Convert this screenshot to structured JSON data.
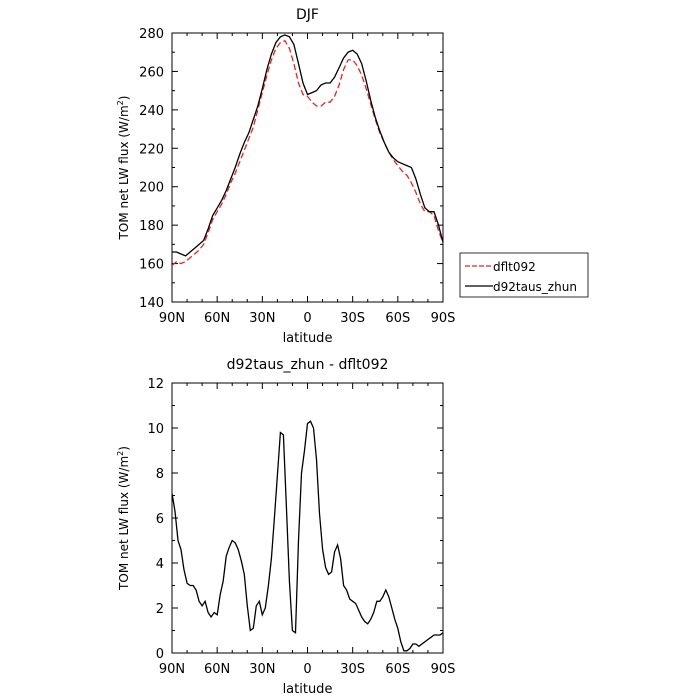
{
  "chart_data": [
    {
      "type": "line",
      "title": "DJF",
      "xlabel": "latitude",
      "ylabel": "TOM net LW flux (W/m²)",
      "ylabel_parts": {
        "main": "TOM net LW flux (W/m",
        "sup": "2",
        "end": ")"
      },
      "xlim": [
        -90,
        90
      ],
      "ylim": [
        140,
        280
      ],
      "x_ticks": [
        {
          "value": -90,
          "label": "90N"
        },
        {
          "value": -60,
          "label": "60N"
        },
        {
          "value": -30,
          "label": "30N"
        },
        {
          "value": 0,
          "label": "0"
        },
        {
          "value": 30,
          "label": "30S"
        },
        {
          "value": 60,
          "label": "60S"
        },
        {
          "value": 90,
          "label": "90S"
        }
      ],
      "y_ticks": [
        140,
        160,
        180,
        200,
        220,
        240,
        260,
        280
      ],
      "legend_position": "right",
      "series": [
        {
          "name": "dflt092",
          "color": "#e8231f",
          "dash": "dashed",
          "x": [
            -90,
            -87,
            -84,
            -81,
            -78,
            -75,
            -72,
            -69,
            -66,
            -63,
            -60,
            -57,
            -54,
            -51,
            -48,
            -45,
            -42,
            -39,
            -36,
            -33,
            -30,
            -27,
            -24,
            -21,
            -18,
            -15,
            -12,
            -9,
            -6,
            -3,
            0,
            3,
            6,
            9,
            12,
            15,
            18,
            21,
            24,
            27,
            30,
            33,
            36,
            39,
            42,
            45,
            48,
            51,
            54,
            57,
            60,
            63,
            66,
            69,
            72,
            75,
            78,
            81,
            84,
            87,
            90
          ],
          "y": [
            159,
            161,
            160,
            161,
            163,
            165,
            167,
            170,
            176,
            183,
            187,
            191,
            196,
            202,
            207,
            213,
            219,
            225,
            231,
            240,
            249,
            258,
            266,
            272,
            275,
            276,
            272,
            264,
            254,
            248,
            247,
            244,
            242,
            242,
            244,
            244,
            247,
            253,
            261,
            266,
            266,
            263,
            258,
            251,
            243,
            235,
            228,
            223,
            218,
            214,
            211,
            208,
            206,
            202,
            197,
            191,
            187,
            187,
            185,
            177,
            171
          ]
        },
        {
          "name": "d92taus_zhun",
          "color": "#000000",
          "dash": "solid",
          "x": [
            -90,
            -87,
            -84,
            -81,
            -78,
            -75,
            -72,
            -69,
            -66,
            -63,
            -60,
            -57,
            -54,
            -51,
            -48,
            -45,
            -42,
            -39,
            -36,
            -33,
            -30,
            -27,
            -24,
            -21,
            -18,
            -15,
            -12,
            -9,
            -6,
            -3,
            0,
            3,
            6,
            9,
            12,
            15,
            18,
            21,
            24,
            27,
            30,
            33,
            36,
            39,
            42,
            45,
            48,
            51,
            54,
            57,
            60,
            63,
            66,
            69,
            72,
            75,
            78,
            81,
            84,
            87,
            90
          ],
          "y": [
            166,
            166,
            165,
            164,
            166,
            168,
            170,
            172,
            178,
            185,
            189,
            193,
            198,
            204,
            210,
            217,
            223,
            228,
            235,
            242,
            251,
            261,
            269,
            275,
            278,
            279,
            278,
            274,
            264,
            254,
            248,
            249,
            250,
            253,
            254,
            254,
            257,
            262,
            267,
            270,
            271,
            269,
            264,
            255,
            245,
            236,
            229,
            223,
            218,
            215,
            213,
            212,
            211,
            210,
            204,
            196,
            189,
            187,
            187,
            180,
            171
          ]
        }
      ]
    },
    {
      "type": "line",
      "title": "d92taus_zhun - dflt092",
      "xlabel": "latitude",
      "ylabel": "TOM net LW flux (W/m²)",
      "ylabel_parts": {
        "main": "TOM net LW flux (W/m",
        "sup": "2",
        "end": ")"
      },
      "xlim": [
        -90,
        90
      ],
      "ylim": [
        0,
        12
      ],
      "x_ticks": [
        {
          "value": -90,
          "label": "90N"
        },
        {
          "value": -60,
          "label": "60N"
        },
        {
          "value": -30,
          "label": "30N"
        },
        {
          "value": 0,
          "label": "0"
        },
        {
          "value": 30,
          "label": "30S"
        },
        {
          "value": 60,
          "label": "60S"
        },
        {
          "value": 90,
          "label": "90S"
        }
      ],
      "y_ticks": [
        0,
        2,
        4,
        6,
        8,
        10,
        12
      ],
      "series": [
        {
          "name": "",
          "color": "#000000",
          "dash": "solid",
          "x": [
            -90,
            -88,
            -86,
            -84,
            -82,
            -80,
            -78,
            -76,
            -74,
            -72,
            -70,
            -68,
            -66,
            -64,
            -62,
            -60,
            -58,
            -56,
            -54,
            -52,
            -50,
            -48,
            -46,
            -44,
            -42,
            -40,
            -38,
            -36,
            -34,
            -32,
            -30,
            -28,
            -26,
            -24,
            -22,
            -20,
            -18,
            -16,
            -14,
            -12,
            -10,
            -8,
            -6,
            -4,
            -2,
            0,
            2,
            4,
            6,
            8,
            10,
            12,
            14,
            16,
            18,
            20,
            22,
            24,
            26,
            28,
            30,
            32,
            34,
            36,
            38,
            40,
            42,
            44,
            46,
            48,
            50,
            52,
            54,
            56,
            58,
            60,
            62,
            64,
            66,
            68,
            70,
            72,
            74,
            76,
            78,
            80,
            82,
            84,
            86,
            88,
            90
          ],
          "y": [
            7.1,
            6.3,
            5.0,
            4.6,
            3.7,
            3.1,
            3.0,
            3.0,
            2.8,
            2.3,
            2.1,
            2.3,
            1.8,
            1.6,
            1.8,
            1.7,
            2.6,
            3.2,
            4.3,
            4.7,
            5.0,
            4.9,
            4.6,
            4.1,
            3.5,
            2.1,
            1.0,
            1.1,
            2.1,
            2.3,
            1.7,
            2.0,
            3.0,
            4.2,
            6.0,
            7.9,
            9.8,
            9.7,
            6.5,
            3.2,
            1.0,
            0.9,
            5.0,
            8.0,
            9.0,
            10.2,
            10.3,
            10.0,
            8.6,
            6.2,
            4.6,
            3.8,
            3.5,
            3.6,
            4.5,
            4.8,
            4.2,
            3.0,
            2.8,
            2.4,
            2.3,
            2.2,
            1.9,
            1.6,
            1.4,
            1.3,
            1.5,
            1.8,
            2.3,
            2.3,
            2.5,
            2.8,
            2.5,
            2.0,
            1.5,
            1.1,
            0.5,
            0.1,
            0.1,
            0.2,
            0.4,
            0.4,
            0.3,
            0.4,
            0.5,
            0.6,
            0.7,
            0.8,
            0.8,
            0.8,
            0.9
          ]
        }
      ]
    }
  ]
}
